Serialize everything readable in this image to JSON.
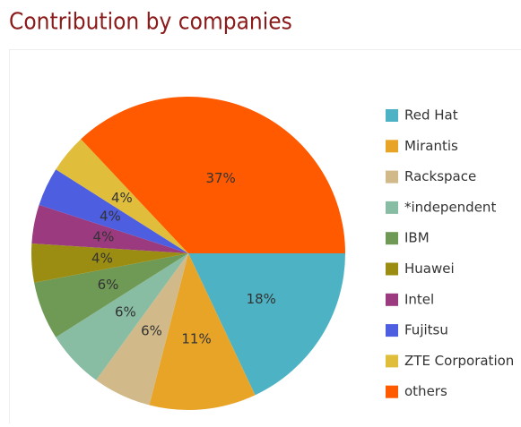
{
  "chart_data": {
    "type": "pie",
    "title": "Contribution by companies",
    "categories": [
      "Red Hat",
      "Mirantis",
      "Rackspace",
      "*independent",
      "IBM",
      "Huawei",
      "Intel",
      "Fujitsu",
      "ZTE Corporation",
      "others"
    ],
    "values": [
      18,
      11,
      6,
      6,
      6,
      4,
      4,
      4,
      4,
      37
    ],
    "value_labels": [
      "18%",
      "11%",
      "6%",
      "6%",
      "6%",
      "4%",
      "4%",
      "4%",
      "4%",
      "37%"
    ],
    "colors": [
      "#4db3c4",
      "#e8a427",
      "#d1b98a",
      "#88bda3",
      "#6f9a55",
      "#9a8d12",
      "#9b3a7f",
      "#4d5ee0",
      "#e0be3c",
      "#ff5a00"
    ]
  }
}
